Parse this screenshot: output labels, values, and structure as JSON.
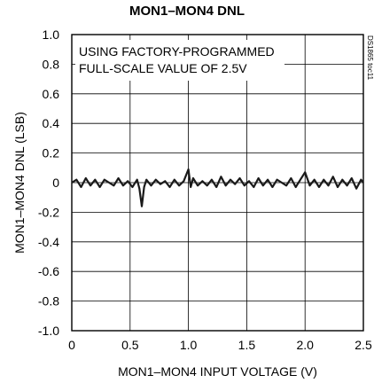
{
  "chart_data": {
    "type": "line",
    "title": "MON1–MON4 DNL",
    "xlabel": "MON1–MON4 INPUT VOLTAGE (V)",
    "ylabel": "MON1–MON4 DNL (LSB)",
    "xlim": [
      0,
      2.5
    ],
    "ylim": [
      -1.0,
      1.0
    ],
    "x_ticks": [
      0,
      0.5,
      1.0,
      1.5,
      2.0,
      2.5
    ],
    "x_tick_labels": [
      "0",
      "0.5",
      "1.0",
      "1.5",
      "2.0",
      "2.5"
    ],
    "y_ticks": [
      1.0,
      0.8,
      0.6,
      0.4,
      0.2,
      0,
      -0.2,
      -0.4,
      -0.6,
      -0.8,
      -1.0
    ],
    "y_tick_labels": [
      "1.0",
      "0.8",
      "0.6",
      "0.4",
      "0.2",
      "0",
      "-0.2",
      "-0.4",
      "-0.6",
      "-0.8",
      "-1.0"
    ],
    "grid": true,
    "annotations": [
      "USING FACTORY-PROGRAMMED",
      "FULL-SCALE VALUE OF 2.5V"
    ],
    "figure_code": "DS1865 toc11",
    "series": [
      {
        "x": [
          0.0,
          0.04,
          0.08,
          0.12,
          0.16,
          0.2,
          0.24,
          0.28,
          0.32,
          0.36,
          0.4,
          0.44,
          0.48,
          0.52,
          0.56,
          0.58,
          0.6,
          0.62,
          0.64,
          0.68,
          0.72,
          0.76,
          0.8,
          0.84,
          0.88,
          0.92,
          0.96,
          1.0,
          1.02,
          1.04,
          1.08,
          1.12,
          1.16,
          1.2,
          1.24,
          1.28,
          1.32,
          1.36,
          1.4,
          1.44,
          1.48,
          1.52,
          1.56,
          1.6,
          1.64,
          1.68,
          1.72,
          1.76,
          1.8,
          1.84,
          1.88,
          1.92,
          1.96,
          2.0,
          2.04,
          2.08,
          2.12,
          2.16,
          2.2,
          2.24,
          2.28,
          2.32,
          2.36,
          2.4,
          2.44,
          2.48,
          2.5
        ],
        "y": [
          0.0,
          0.02,
          -0.03,
          0.03,
          -0.02,
          0.02,
          -0.03,
          0.02,
          0.0,
          -0.02,
          0.03,
          -0.02,
          0.01,
          -0.03,
          0.02,
          -0.04,
          -0.16,
          -0.03,
          0.02,
          -0.02,
          0.02,
          -0.01,
          0.01,
          -0.03,
          0.02,
          -0.02,
          0.01,
          0.09,
          -0.03,
          0.03,
          -0.02,
          0.01,
          -0.02,
          0.02,
          -0.03,
          0.04,
          -0.02,
          0.02,
          -0.01,
          0.03,
          -0.02,
          0.01,
          -0.03,
          0.03,
          -0.02,
          0.02,
          -0.03,
          0.02,
          0.0,
          -0.02,
          0.03,
          -0.03,
          0.02,
          0.07,
          -0.02,
          0.02,
          -0.03,
          0.02,
          -0.02,
          0.04,
          -0.03,
          0.02,
          -0.02,
          0.03,
          -0.04,
          0.02,
          0.0
        ]
      }
    ]
  }
}
